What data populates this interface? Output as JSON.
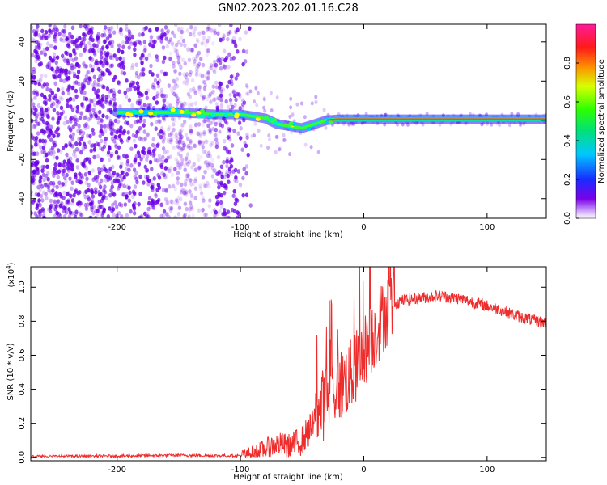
{
  "title": "GN02.2023.202.01.16.C28",
  "colors": {
    "spectrogram_dot": "#6a00e6",
    "snr_line": "#ee2c2c",
    "trace_center": "#ff3a5a",
    "trace_edge": "#00c8ff",
    "frame": "#000000"
  },
  "chart_data": [
    {
      "type": "heatmap",
      "xlabel": "Height of straight line (km)",
      "ylabel": "Frequency (Hz)",
      "xlim": [
        -270,
        148
      ],
      "ylim": [
        -50,
        49
      ],
      "x_ticks": [
        -200,
        -100,
        0,
        100
      ],
      "x_tick_labels": [
        "-200",
        "-100",
        "0",
        "100"
      ],
      "y_ticks": [
        -40,
        -20,
        0,
        20,
        40
      ],
      "y_tick_labels": [
        "-40",
        "-20",
        "0",
        "20",
        "40"
      ],
      "grid": false,
      "colorbar": {
        "label": "Normalized spectral amplitude",
        "range": [
          0,
          1
        ],
        "ticks": [
          0.0,
          0.2,
          0.4,
          0.6,
          0.8
        ],
        "tick_labels": [
          "0.0",
          "0.2",
          "0.4",
          "0.6",
          "0.8"
        ],
        "colormap": "rainbow (purple-blue-cyan-green-yellow-red-magenta)"
      },
      "doppler_trace": {
        "x": [
          -200,
          -150,
          -120,
          -100,
          -80,
          -70,
          -60,
          -50,
          -45,
          -40,
          -30,
          -20,
          0,
          50,
          100,
          148
        ],
        "y": [
          4,
          4,
          3,
          3,
          1,
          -2,
          -3,
          -4,
          -3,
          -2,
          0,
          0.5,
          0.5,
          0.5,
          0.5,
          0.5
        ]
      }
    },
    {
      "type": "line",
      "xlabel": "Height of straight line (km)",
      "ylabel": "SNR (10 * v/v)",
      "y_exponent_label": "(x10",
      "y_exponent_power": "4",
      "y_exponent_close": ")",
      "xlim": [
        -270,
        148
      ],
      "ylim": [
        -0.02,
        1.12
      ],
      "x_ticks": [
        -200,
        -100,
        0,
        100
      ],
      "x_tick_labels": [
        "-200",
        "-100",
        "0",
        "100"
      ],
      "y_ticks": [
        0.0,
        0.2,
        0.4,
        0.6,
        0.8,
        1.0
      ],
      "y_tick_labels": [
        "0.0",
        "0.2",
        "0.4",
        "0.6",
        "0.8",
        "1.0"
      ],
      "grid": false,
      "series": [
        {
          "x": [
            -270,
            -200,
            -150,
            -120,
            -100,
            -90,
            -80,
            -70,
            -60,
            -50,
            -40,
            -35,
            -30,
            -25,
            -20,
            -15,
            -10,
            -5,
            0,
            5,
            10,
            15,
            20,
            30,
            40,
            50,
            60,
            70,
            80,
            90,
            100,
            110,
            120,
            130,
            140,
            148
          ],
          "y": [
            0.005,
            0.008,
            0.012,
            0.01,
            0.01,
            0.02,
            0.05,
            0.08,
            0.06,
            0.1,
            0.2,
            0.28,
            0.35,
            0.4,
            0.42,
            0.45,
            0.48,
            0.55,
            0.62,
            0.68,
            0.75,
            0.82,
            0.88,
            0.92,
            0.93,
            0.94,
            0.95,
            0.94,
            0.93,
            0.91,
            0.89,
            0.87,
            0.84,
            0.82,
            0.8,
            0.79
          ]
        }
      ]
    }
  ]
}
